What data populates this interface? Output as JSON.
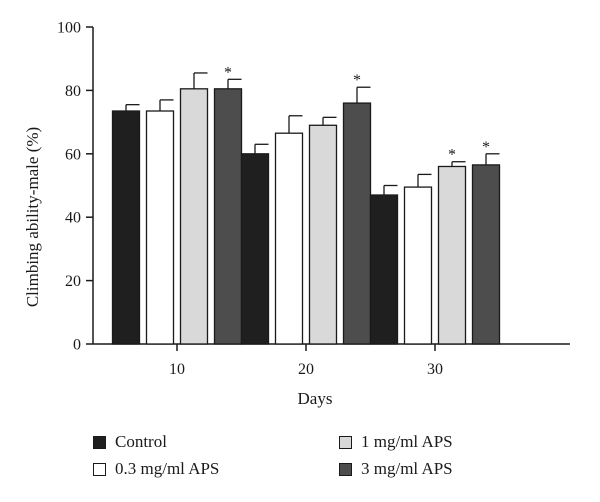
{
  "chart_data": {
    "type": "bar",
    "categories": [
      "10",
      "20",
      "30"
    ],
    "xlabel": "Days",
    "ylabel": "Climbing ability-male (%)",
    "ylim": [
      0,
      100
    ],
    "yticks": [
      0,
      20,
      40,
      60,
      80,
      100
    ],
    "grid": false,
    "legend_position": "bottom",
    "series": [
      {
        "name": "Control",
        "color": "#1f1f1f",
        "values": [
          73.5,
          60,
          47
        ],
        "errors": [
          2,
          3,
          3
        ],
        "significant": [
          false,
          false,
          false
        ]
      },
      {
        "name": "0.3 mg/ml APS",
        "color": "#ffffff",
        "values": [
          73.5,
          66.5,
          49.5
        ],
        "errors": [
          3.5,
          5.5,
          4
        ],
        "significant": [
          false,
          false,
          false
        ]
      },
      {
        "name": "1 mg/ml APS",
        "color": "#d9d9d9",
        "values": [
          80.5,
          69,
          56
        ],
        "errors": [
          5,
          2.5,
          1.5
        ],
        "significant": [
          false,
          false,
          true
        ]
      },
      {
        "name": "3 mg/ml APS",
        "color": "#4d4d4d",
        "values": [
          80.5,
          76,
          56.5
        ],
        "errors": [
          3,
          5,
          3.5
        ],
        "significant": [
          true,
          true,
          true
        ]
      }
    ],
    "significance_marker": "*"
  }
}
